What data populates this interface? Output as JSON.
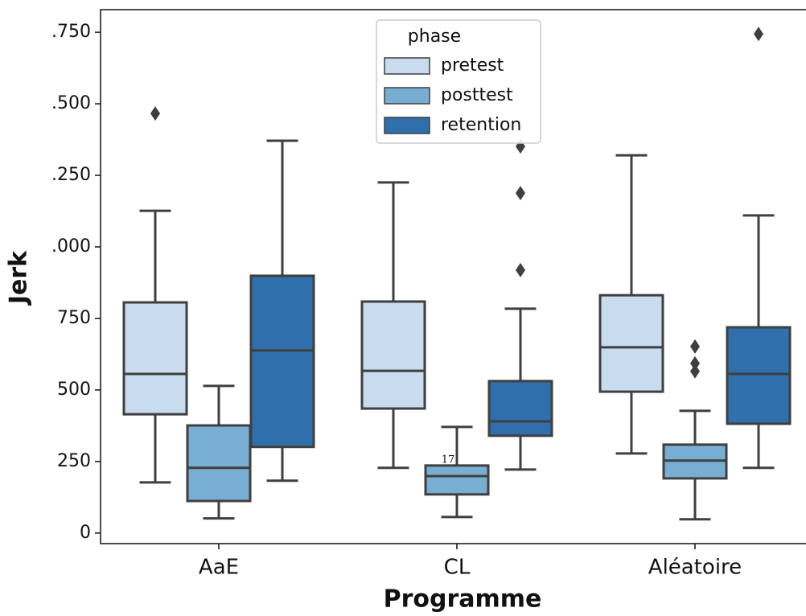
{
  "chart_data": {
    "type": "box",
    "x_label": "Programme",
    "y_label": "Jerk",
    "categories": [
      "AaE",
      "CL",
      "Aléatoire"
    ],
    "legend_title": "phase",
    "legend": "upper center",
    "annotation": "17",
    "ylim": [
      -37,
      1829
    ],
    "yticks": [
      0,
      250,
      500,
      750,
      {
        "value": 1000,
        "label": ".000"
      },
      {
        "value": 1250,
        "label": ".250"
      },
      {
        "value": 1500,
        "label": ".500"
      },
      {
        "value": 1750,
        "label": ".750"
      }
    ],
    "series": [
      {
        "name": "pretest",
        "color": "#c9dbee",
        "values": [
          {
            "min": 177,
            "q1": 415,
            "median": 556,
            "q3": 806,
            "max": 1126,
            "outliers": [
              1466
            ]
          },
          {
            "min": 228,
            "q1": 435,
            "median": 567,
            "q3": 809,
            "max": 1225,
            "outliers": []
          },
          {
            "min": 278,
            "q1": 494,
            "median": 649,
            "q3": 831,
            "max": 1320,
            "outliers": []
          }
        ]
      },
      {
        "name": "posttest",
        "color": "#79aed3",
        "values": [
          {
            "min": 51,
            "q1": 112,
            "median": 228,
            "q3": 376,
            "max": 514,
            "outliers": []
          },
          {
            "min": 56,
            "q1": 135,
            "median": 199,
            "q3": 236,
            "max": 371,
            "outliers": []
          },
          {
            "min": 48,
            "q1": 191,
            "median": 253,
            "q3": 309,
            "max": 427,
            "outliers": [
              652,
              593,
              565
            ]
          }
        ]
      },
      {
        "name": "retention",
        "color": "#2f6fab",
        "values": [
          {
            "min": 183,
            "q1": 301,
            "median": 638,
            "q3": 899,
            "max": 1371,
            "outliers": []
          },
          {
            "min": 222,
            "q1": 340,
            "median": 390,
            "q3": 531,
            "max": 784,
            "outliers": [
              919,
              1188,
              1351
            ]
          },
          {
            "min": 228,
            "q1": 382,
            "median": 556,
            "q3": 719,
            "max": 1110,
            "outliers": [
              1744
            ]
          }
        ]
      }
    ]
  }
}
